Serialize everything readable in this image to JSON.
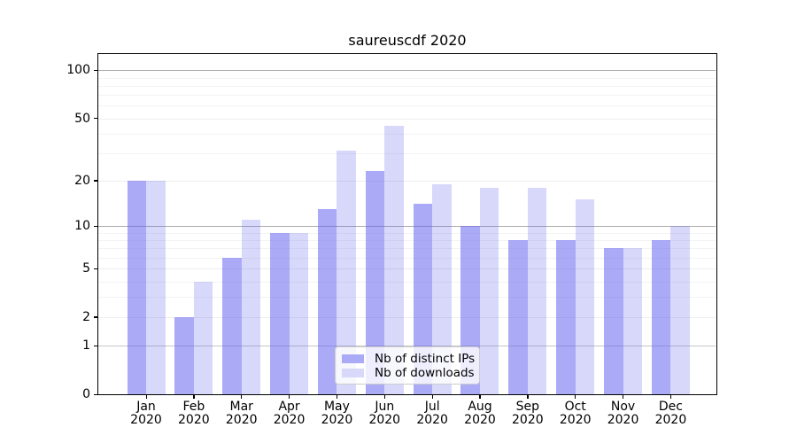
{
  "title": "saureuscdf 2020",
  "chart_data": {
    "type": "bar",
    "title": "saureuscdf 2020",
    "categories": [
      "Jan",
      "Feb",
      "Mar",
      "Apr",
      "May",
      "Jun",
      "Jul",
      "Aug",
      "Sep",
      "Oct",
      "Nov",
      "Dec"
    ],
    "category_year": "2020",
    "series": [
      {
        "name": "Nb of distinct IPs",
        "values": [
          20,
          2,
          6,
          9,
          13,
          23,
          14,
          10,
          8,
          8,
          7,
          8
        ]
      },
      {
        "name": "Nb of downloads",
        "values": [
          20,
          4,
          11,
          9,
          31,
          45,
          19,
          18,
          18,
          15,
          7,
          10
        ]
      }
    ],
    "xlabel": "",
    "ylabel": "",
    "yscale": "log1p",
    "ylim": [
      0,
      128
    ],
    "yticks": [
      100,
      50,
      20,
      10,
      5,
      2,
      1,
      0
    ],
    "grid": {
      "decade_lines": [
        100,
        10
      ],
      "unit_lines": [
        1
      ],
      "major_lines": [
        50,
        20,
        5,
        2
      ],
      "minor_lines": [
        90,
        80,
        70,
        60,
        40,
        30,
        9,
        8,
        7,
        6,
        4,
        3
      ]
    },
    "legend_position": "lower center",
    "grid_on": true
  },
  "colors": {
    "bar_base": "#6464f0",
    "series_alpha": [
      0.55,
      0.25
    ],
    "legend_swatches": [
      "#aaaaf6",
      "#d8d8fb"
    ],
    "grid_decade": "#ababab",
    "grid_unit": "#c6c6c6",
    "grid_major": "#ededed",
    "grid_minor": "#f3f3f3",
    "axis_color": "#000000",
    "background": "#ffffff"
  }
}
